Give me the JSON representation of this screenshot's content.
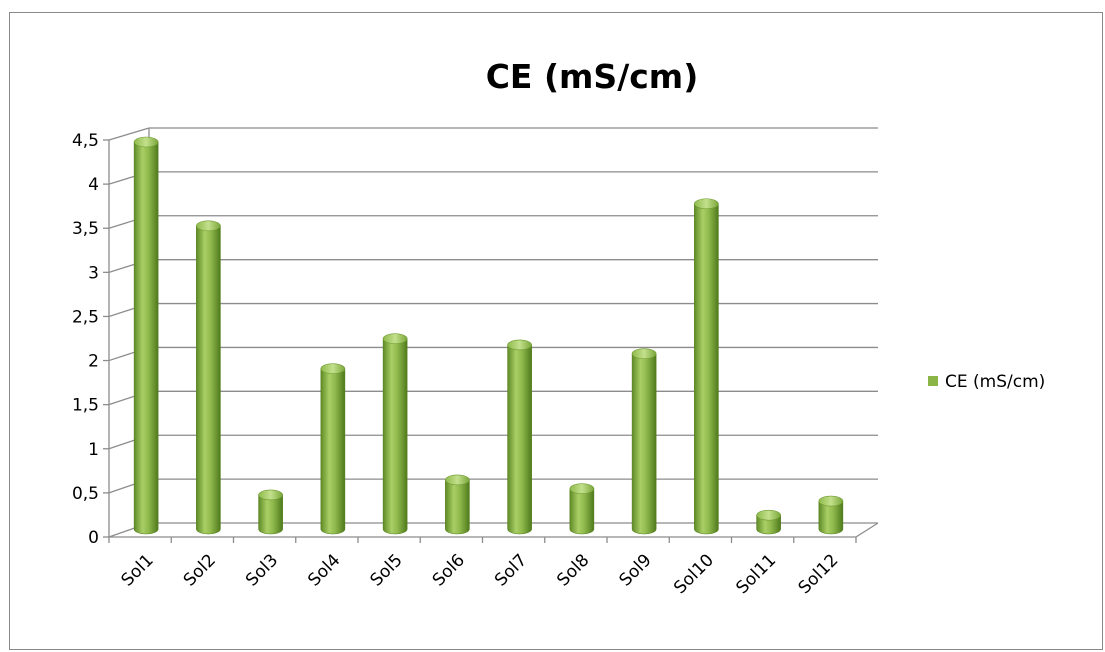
{
  "chart_data": {
    "type": "bar",
    "title": "CE (mS/cm)",
    "xlabel": "",
    "ylabel": "",
    "categories": [
      "Sol1",
      "Sol2",
      "Sol3",
      "Sol4",
      "Sol5",
      "Sol6",
      "Sol7",
      "Sol8",
      "Sol9",
      "Sol10",
      "Sol11",
      "Sol12"
    ],
    "series": [
      {
        "name": "CE (mS/cm)",
        "values": [
          4.5,
          3.55,
          0.5,
          1.93,
          2.27,
          0.67,
          2.2,
          0.57,
          2.1,
          3.8,
          0.27,
          0.43
        ]
      }
    ],
    "y_ticks": [
      "0",
      "0,5",
      "1",
      "1,5",
      "2",
      "2,5",
      "3",
      "3,5",
      "4",
      "4,5"
    ],
    "ylim": [
      0,
      4.5
    ],
    "grid": true,
    "legend_position": "right",
    "bar_color": "#8cb548"
  }
}
